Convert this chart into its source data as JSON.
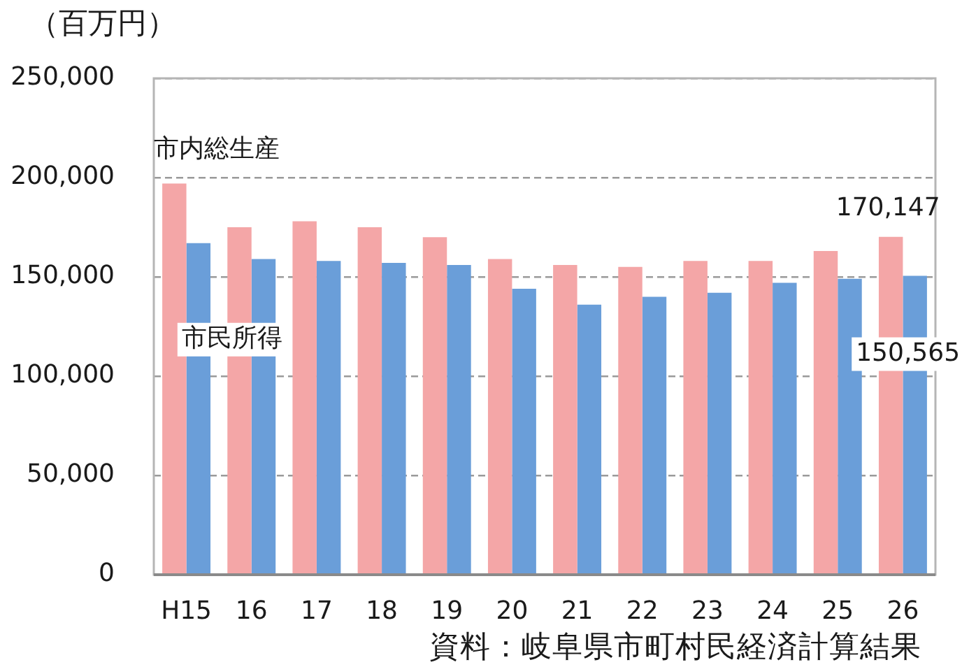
{
  "chart_data": {
    "type": "bar",
    "ylabel": "（百万円）",
    "categories": [
      "H15",
      "16",
      "17",
      "18",
      "19",
      "20",
      "21",
      "22",
      "23",
      "24",
      "25",
      "26"
    ],
    "series": [
      {
        "name": "市内総生産",
        "color": "#f4a6a7",
        "values": [
          197000,
          175000,
          178000,
          175000,
          170000,
          159000,
          156000,
          155000,
          158000,
          158000,
          163000,
          170147
        ],
        "value_labels": [
          null,
          null,
          null,
          null,
          null,
          null,
          null,
          null,
          null,
          null,
          null,
          "170,147"
        ]
      },
      {
        "name": "市民所得",
        "color": "#6a9ed9",
        "values": [
          167000,
          159000,
          158000,
          157000,
          156000,
          144000,
          136000,
          140000,
          142000,
          147000,
          149000,
          150565
        ],
        "value_labels": [
          null,
          null,
          null,
          null,
          null,
          null,
          null,
          null,
          null,
          null,
          null,
          "150,565"
        ]
      }
    ],
    "ylim": [
      0,
      250000
    ],
    "yticks": [
      0,
      {
        "value": 50000,
        "label": "50,000"
      },
      {
        "value": 100000,
        "label": "100,000"
      },
      {
        "value": 150000,
        "label": "150,000"
      },
      {
        "value": 200000,
        "label": "200,000"
      },
      {
        "value": 250000,
        "label": "250,000"
      }
    ],
    "grid": "y",
    "annotations": [
      "資料：岐阜県市町村民経済計算結果"
    ]
  }
}
